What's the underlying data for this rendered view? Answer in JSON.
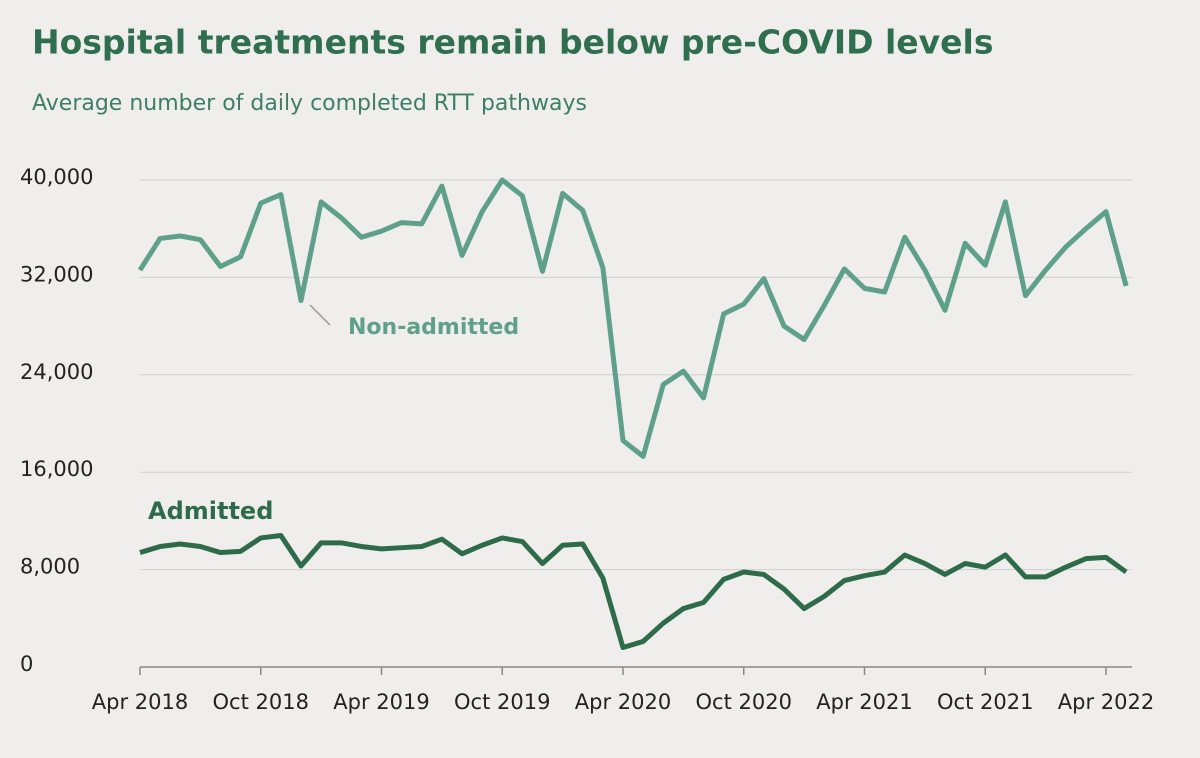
{
  "chart_data": {
    "type": "line",
    "title": "Hospital treatments remain below pre-COVID levels",
    "subtitle": "Average number of daily completed RTT pathways",
    "categories": [
      "Apr 2018",
      null,
      null,
      null,
      null,
      null,
      "Oct 2018",
      null,
      null,
      null,
      null,
      null,
      "Apr 2019",
      null,
      null,
      null,
      null,
      null,
      "Oct 2019",
      null,
      null,
      null,
      null,
      null,
      "Apr 2020",
      null,
      null,
      null,
      null,
      null,
      "Oct 2020",
      null,
      null,
      null,
      null,
      null,
      "Apr 2021",
      null,
      null,
      null,
      null,
      null,
      "Oct 2021",
      null,
      null,
      null,
      null,
      null,
      "Apr 2022",
      null
    ],
    "series": [
      {
        "name": "Non-admitted",
        "color": "#5fa08c",
        "values": [
          32600,
          35200,
          35400,
          35100,
          32900,
          33700,
          38100,
          38800,
          30100,
          38200,
          36900,
          35300,
          35800,
          36500,
          36400,
          39500,
          33800,
          37400,
          40000,
          38700,
          32500,
          38900,
          37500,
          32800,
          18600,
          17300,
          23200,
          24300,
          22100,
          29000,
          29800,
          31900,
          28000,
          26900,
          29700,
          32700,
          31100,
          30800,
          35300,
          32600,
          29300,
          34800,
          33000,
          38200,
          30500,
          32600,
          34500,
          36000,
          37400,
          31300
        ]
      },
      {
        "name": "Admitted",
        "color": "#2e6b4b",
        "values": [
          9400,
          9900,
          10100,
          9900,
          9400,
          9500,
          10600,
          10800,
          8300,
          10200,
          10200,
          9900,
          9700,
          9800,
          9900,
          10500,
          9300,
          10000,
          10600,
          10300,
          8500,
          10000,
          10100,
          7300,
          1600,
          2100,
          3600,
          4800,
          5300,
          7200,
          7800,
          7600,
          6400,
          4800,
          5800,
          7100,
          7500,
          7800,
          9200,
          8500,
          7600,
          8500,
          8200,
          9200,
          7400,
          7400,
          8200,
          8900,
          9000,
          7800
        ]
      }
    ],
    "ylim": [
      0,
      40000
    ],
    "yticks": [
      0,
      {
        "value": 8000,
        "label": "8,000"
      },
      {
        "value": 16000,
        "label": "16,000"
      },
      {
        "value": 24000,
        "label": "24,000"
      },
      {
        "value": 32000,
        "label": "32,000"
      },
      {
        "value": 40000,
        "label": "40,000"
      }
    ],
    "grid": true
  }
}
